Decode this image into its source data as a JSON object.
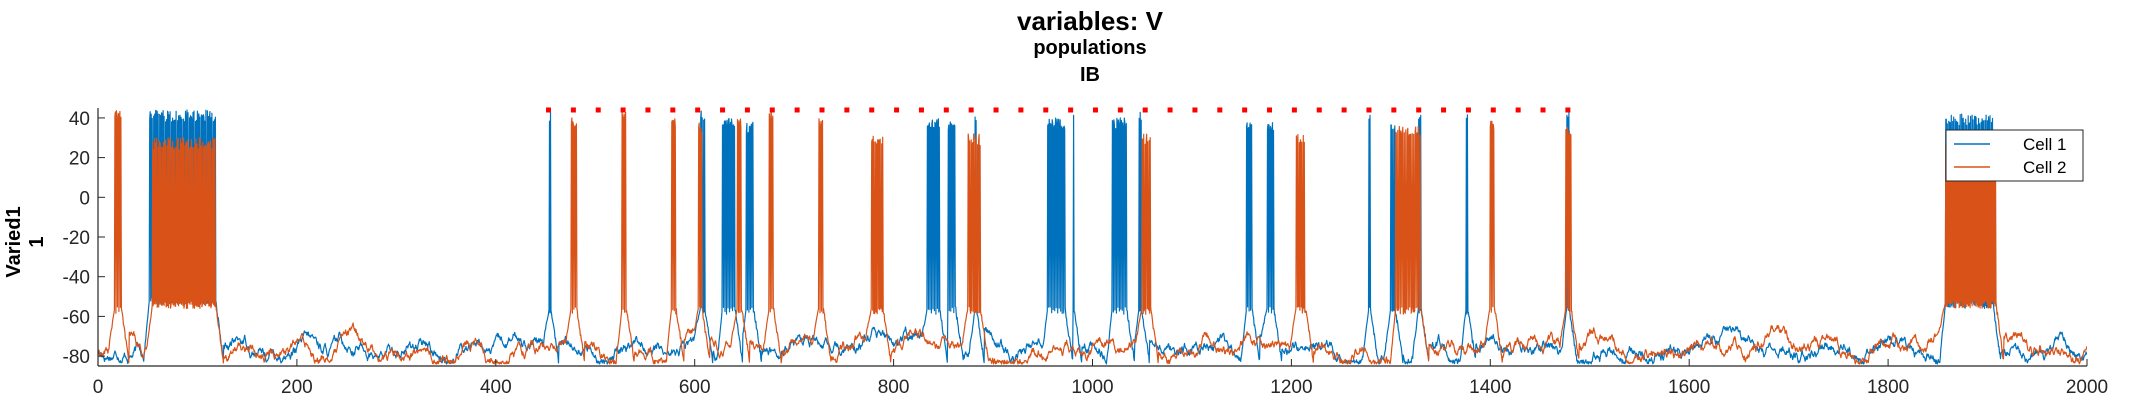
{
  "chart_data": {
    "type": "line",
    "title": "variables: V",
    "subtitle_lines": [
      "populations",
      "IB"
    ],
    "ylabel_lines": [
      "Varied1",
      "1"
    ],
    "xlabel": "",
    "xlim": [
      0,
      2000
    ],
    "ylim": [
      -85,
      45
    ],
    "xticks": [
      0,
      200,
      400,
      600,
      800,
      1000,
      1200,
      1400,
      1600,
      1800,
      2000
    ],
    "yticks": [
      -80,
      -60,
      -40,
      -20,
      0,
      20,
      40
    ],
    "grid": false,
    "legend_position": "top-right",
    "baseline_mV": -76,
    "series": [
      {
        "name": "Cell 1",
        "color": "#0072BD",
        "bursts": [
          {
            "start": 52,
            "end": 118,
            "peak": 44,
            "trough": -50,
            "cycle": 1.2
          },
          {
            "start": 454,
            "end": 455,
            "peak": 44,
            "trough": -55,
            "cycle": 1.0
          },
          {
            "start": 606,
            "end": 610,
            "peak": 44,
            "trough": -55,
            "cycle": 1.3
          },
          {
            "start": 628,
            "end": 640,
            "peak": 40,
            "trough": -55,
            "cycle": 1.5
          },
          {
            "start": 652,
            "end": 659,
            "peak": 38,
            "trough": -55,
            "cycle": 1.5
          },
          {
            "start": 834,
            "end": 846,
            "peak": 40,
            "trough": -55,
            "cycle": 1.5
          },
          {
            "start": 855,
            "end": 862,
            "peak": 38,
            "trough": -55,
            "cycle": 1.5
          },
          {
            "start": 882,
            "end": 883,
            "peak": 44,
            "trough": -55,
            "cycle": 1.0
          },
          {
            "start": 955,
            "end": 972,
            "peak": 40,
            "trough": -55,
            "cycle": 1.5
          },
          {
            "start": 980,
            "end": 981,
            "peak": 44,
            "trough": -55,
            "cycle": 1.0
          },
          {
            "start": 1020,
            "end": 1034,
            "peak": 40,
            "trough": -55,
            "cycle": 1.5
          },
          {
            "start": 1047,
            "end": 1049,
            "peak": 44,
            "trough": -55,
            "cycle": 1.0
          },
          {
            "start": 1155,
            "end": 1160,
            "peak": 40,
            "trough": -55,
            "cycle": 1.5
          },
          {
            "start": 1176,
            "end": 1182,
            "peak": 38,
            "trough": -55,
            "cycle": 1.5
          },
          {
            "start": 1278,
            "end": 1279,
            "peak": 44,
            "trough": -55,
            "cycle": 1.0
          },
          {
            "start": 1300,
            "end": 1304,
            "peak": 40,
            "trough": -55,
            "cycle": 1.3
          },
          {
            "start": 1328,
            "end": 1330,
            "peak": 44,
            "trough": -55,
            "cycle": 1.0
          },
          {
            "start": 1376,
            "end": 1377,
            "peak": 44,
            "trough": -55,
            "cycle": 1.0
          },
          {
            "start": 1477,
            "end": 1479,
            "peak": 44,
            "trough": -55,
            "cycle": 1.0
          },
          {
            "start": 1858,
            "end": 1905,
            "peak": 42,
            "trough": -52,
            "cycle": 1.3
          }
        ]
      },
      {
        "name": "Cell 2",
        "color": "#D95319",
        "bursts": [
          {
            "start": 17,
            "end": 23,
            "peak": 44,
            "trough": -55,
            "cycle": 1.5
          },
          {
            "start": 55,
            "end": 118,
            "peak": 30,
            "trough": -52,
            "cycle": 0.9
          },
          {
            "start": 476,
            "end": 481,
            "peak": 40,
            "trough": -55,
            "cycle": 1.5
          },
          {
            "start": 527,
            "end": 531,
            "peak": 44,
            "trough": -55,
            "cycle": 1.5
          },
          {
            "start": 577,
            "end": 581,
            "peak": 40,
            "trough": -55,
            "cycle": 1.5
          },
          {
            "start": 604,
            "end": 607,
            "peak": 38,
            "trough": -55,
            "cycle": 1.5
          },
          {
            "start": 643,
            "end": 647,
            "peak": 40,
            "trough": -55,
            "cycle": 1.5
          },
          {
            "start": 675,
            "end": 679,
            "peak": 44,
            "trough": -55,
            "cycle": 1.5
          },
          {
            "start": 725,
            "end": 729,
            "peak": 40,
            "trough": -55,
            "cycle": 1.5
          },
          {
            "start": 778,
            "end": 789,
            "peak": 32,
            "trough": -55,
            "cycle": 1.2
          },
          {
            "start": 875,
            "end": 887,
            "peak": 32,
            "trough": -55,
            "cycle": 1.3
          },
          {
            "start": 1050,
            "end": 1058,
            "peak": 32,
            "trough": -55,
            "cycle": 1.3
          },
          {
            "start": 1205,
            "end": 1214,
            "peak": 32,
            "trough": -55,
            "cycle": 1.3
          },
          {
            "start": 1305,
            "end": 1330,
            "peak": 36,
            "trough": -55,
            "cycle": 1.6
          },
          {
            "start": 1400,
            "end": 1404,
            "peak": 40,
            "trough": -55,
            "cycle": 1.5
          },
          {
            "start": 1476,
            "end": 1481,
            "peak": 36,
            "trough": -55,
            "cycle": 1.5
          },
          {
            "start": 1858,
            "end": 1908,
            "peak": 30,
            "trough": -52,
            "cycle": 1.0
          }
        ]
      }
    ],
    "markers": {
      "color": "#FF0000",
      "y": 44,
      "x": [
        453,
        478,
        503,
        528,
        553,
        578,
        603,
        628,
        653,
        678,
        703,
        728,
        753,
        778,
        803,
        828,
        853,
        878,
        903,
        928,
        953,
        978,
        1003,
        1028,
        1053,
        1078,
        1103,
        1128,
        1153,
        1178,
        1203,
        1228,
        1253,
        1278,
        1303,
        1328,
        1353,
        1378,
        1403,
        1428,
        1453,
        1478
      ]
    },
    "legend": {
      "entries": [
        "Cell 1",
        "Cell 2"
      ]
    }
  }
}
